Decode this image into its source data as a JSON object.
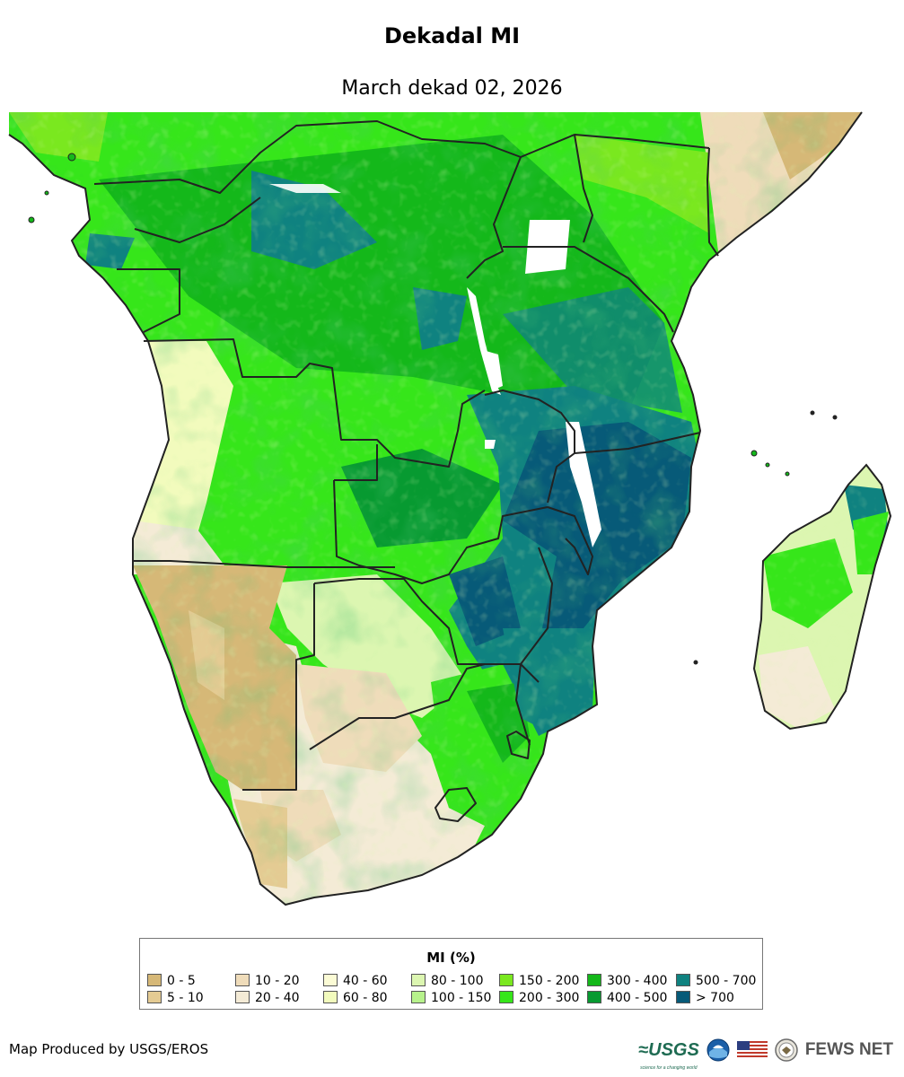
{
  "title": "Dekadal MI",
  "subtitle": "March dekad 02, 2026",
  "legend": {
    "title": "MI (%)",
    "classes": [
      {
        "label": "0 - 5",
        "color": "#d6b877"
      },
      {
        "label": "5 - 10",
        "color": "#e4cb93"
      },
      {
        "label": "10 - 20",
        "color": "#efdcba"
      },
      {
        "label": "20 - 40",
        "color": "#f4ebd6"
      },
      {
        "label": "40 - 60",
        "color": "#fbfbd5"
      },
      {
        "label": "60 - 80",
        "color": "#f2fbbd"
      },
      {
        "label": "80 - 100",
        "color": "#dcf6b1"
      },
      {
        "label": "100 - 150",
        "color": "#b7f28c"
      },
      {
        "label": "150 - 200",
        "color": "#7ae81f"
      },
      {
        "label": "200 - 300",
        "color": "#36e61a"
      },
      {
        "label": "300 - 400",
        "color": "#14b81a"
      },
      {
        "label": "400 - 500",
        "color": "#079a31"
      },
      {
        "label": "500 - 700",
        "color": "#0f8280"
      },
      {
        "label": "> 700",
        "color": "#075a78"
      }
    ]
  },
  "credit": "Map Produced by USGS/EROS",
  "logos": {
    "usgs": "≈USGS",
    "usgs_tagline": "science for a changing world",
    "fewsnet": "FEWS NET",
    "icons": [
      "usgs-logo",
      "noaa-logo-icon",
      "us-flag-icon",
      "state-department-seal-icon"
    ]
  }
}
